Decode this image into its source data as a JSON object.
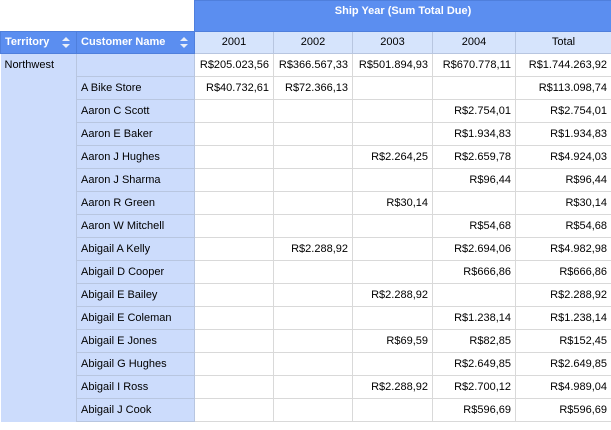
{
  "header": {
    "territory": "Territory",
    "customer": "Customer Name",
    "group": "Ship Year (Sum Total Due)",
    "columns": [
      "2001",
      "2002",
      "2003",
      "2004",
      "Total"
    ]
  },
  "territory": "Northwest",
  "rows": [
    {
      "customer": null,
      "cells": [
        "R$205.023,56",
        "R$366.567,33",
        "R$501.894,93",
        "R$670.778,11",
        "R$1.744.263,92"
      ]
    },
    {
      "customer": "A Bike Store",
      "cells": [
        "R$40.732,61",
        "R$72.366,13",
        null,
        null,
        "R$113.098,74"
      ]
    },
    {
      "customer": "Aaron C Scott",
      "cells": [
        null,
        null,
        null,
        "R$2.754,01",
        "R$2.754,01"
      ]
    },
    {
      "customer": "Aaron E Baker",
      "cells": [
        null,
        null,
        null,
        "R$1.934,83",
        "R$1.934,83"
      ]
    },
    {
      "customer": "Aaron J Hughes",
      "cells": [
        null,
        null,
        "R$2.264,25",
        "R$2.659,78",
        "R$4.924,03"
      ]
    },
    {
      "customer": "Aaron J Sharma",
      "cells": [
        null,
        null,
        null,
        "R$96,44",
        "R$96,44"
      ]
    },
    {
      "customer": "Aaron R Green",
      "cells": [
        null,
        null,
        "R$30,14",
        null,
        "R$30,14"
      ]
    },
    {
      "customer": "Aaron W Mitchell",
      "cells": [
        null,
        null,
        null,
        "R$54,68",
        "R$54,68"
      ]
    },
    {
      "customer": "Abigail A Kelly",
      "cells": [
        null,
        "R$2.288,92",
        null,
        "R$2.694,06",
        "R$4.982,98"
      ]
    },
    {
      "customer": "Abigail D Cooper",
      "cells": [
        null,
        null,
        null,
        "R$666,86",
        "R$666,86"
      ]
    },
    {
      "customer": "Abigail E Bailey",
      "cells": [
        null,
        null,
        "R$2.288,92",
        null,
        "R$2.288,92"
      ]
    },
    {
      "customer": "Abigail E Coleman",
      "cells": [
        null,
        null,
        null,
        "R$1.238,14",
        "R$1.238,14"
      ]
    },
    {
      "customer": "Abigail E Jones",
      "cells": [
        null,
        null,
        "R$69,59",
        "R$82,85",
        "R$152,45"
      ]
    },
    {
      "customer": "Abigail G Hughes",
      "cells": [
        null,
        null,
        null,
        "R$2.649,85",
        "R$2.649,85"
      ]
    },
    {
      "customer": "Abigail I Ross",
      "cells": [
        null,
        null,
        "R$2.288,92",
        "R$2.700,12",
        "R$4.989,04"
      ]
    },
    {
      "customer": "Abigail J Cook",
      "cells": [
        null,
        null,
        null,
        "R$596,69",
        "R$596,69"
      ]
    }
  ]
}
